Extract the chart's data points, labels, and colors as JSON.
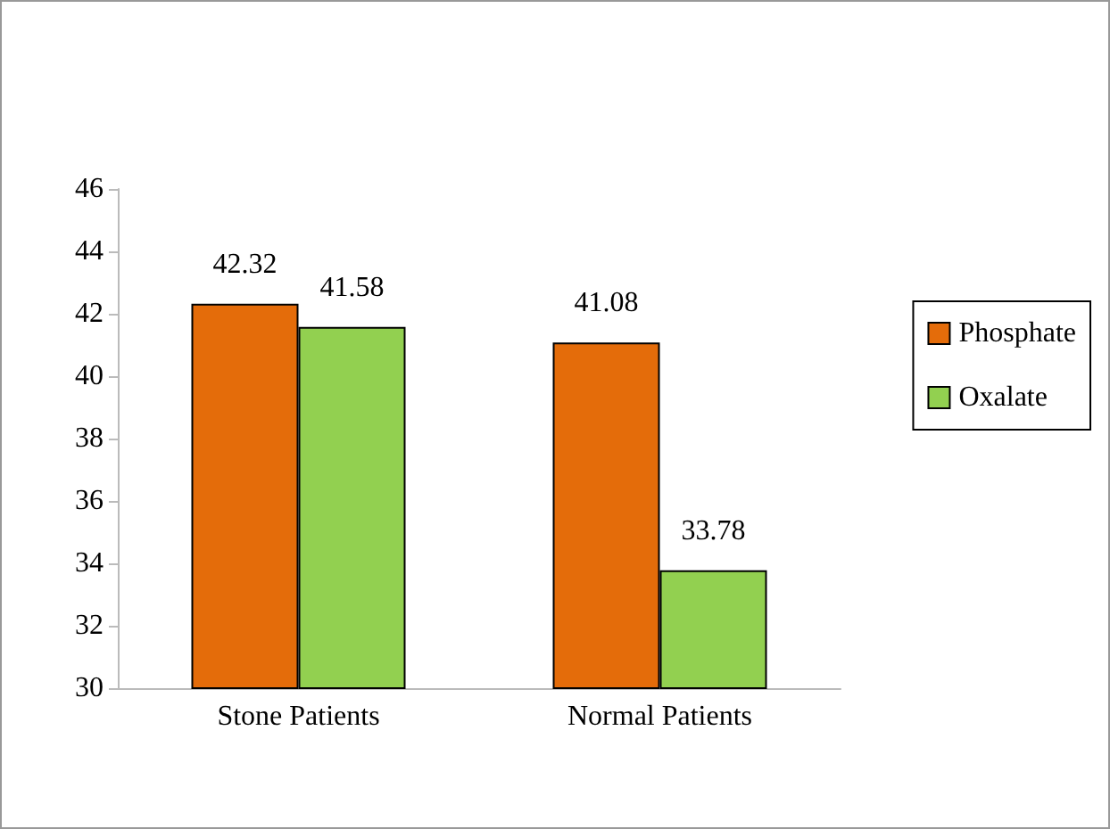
{
  "chart_data": {
    "type": "bar",
    "categories": [
      "Stone Patients",
      "Normal Patients"
    ],
    "series": [
      {
        "name": "Phosphate",
        "color": "#e46c0a",
        "values": [
          42.32,
          41.08
        ]
      },
      {
        "name": "Oxalate",
        "color": "#92d050",
        "values": [
          41.58,
          33.78
        ]
      }
    ],
    "ylim": [
      30,
      46
    ],
    "yticks": [
      30,
      32,
      34,
      36,
      38,
      40,
      42,
      44,
      46
    ],
    "grid": false,
    "legend": "right",
    "data_labels": true
  }
}
